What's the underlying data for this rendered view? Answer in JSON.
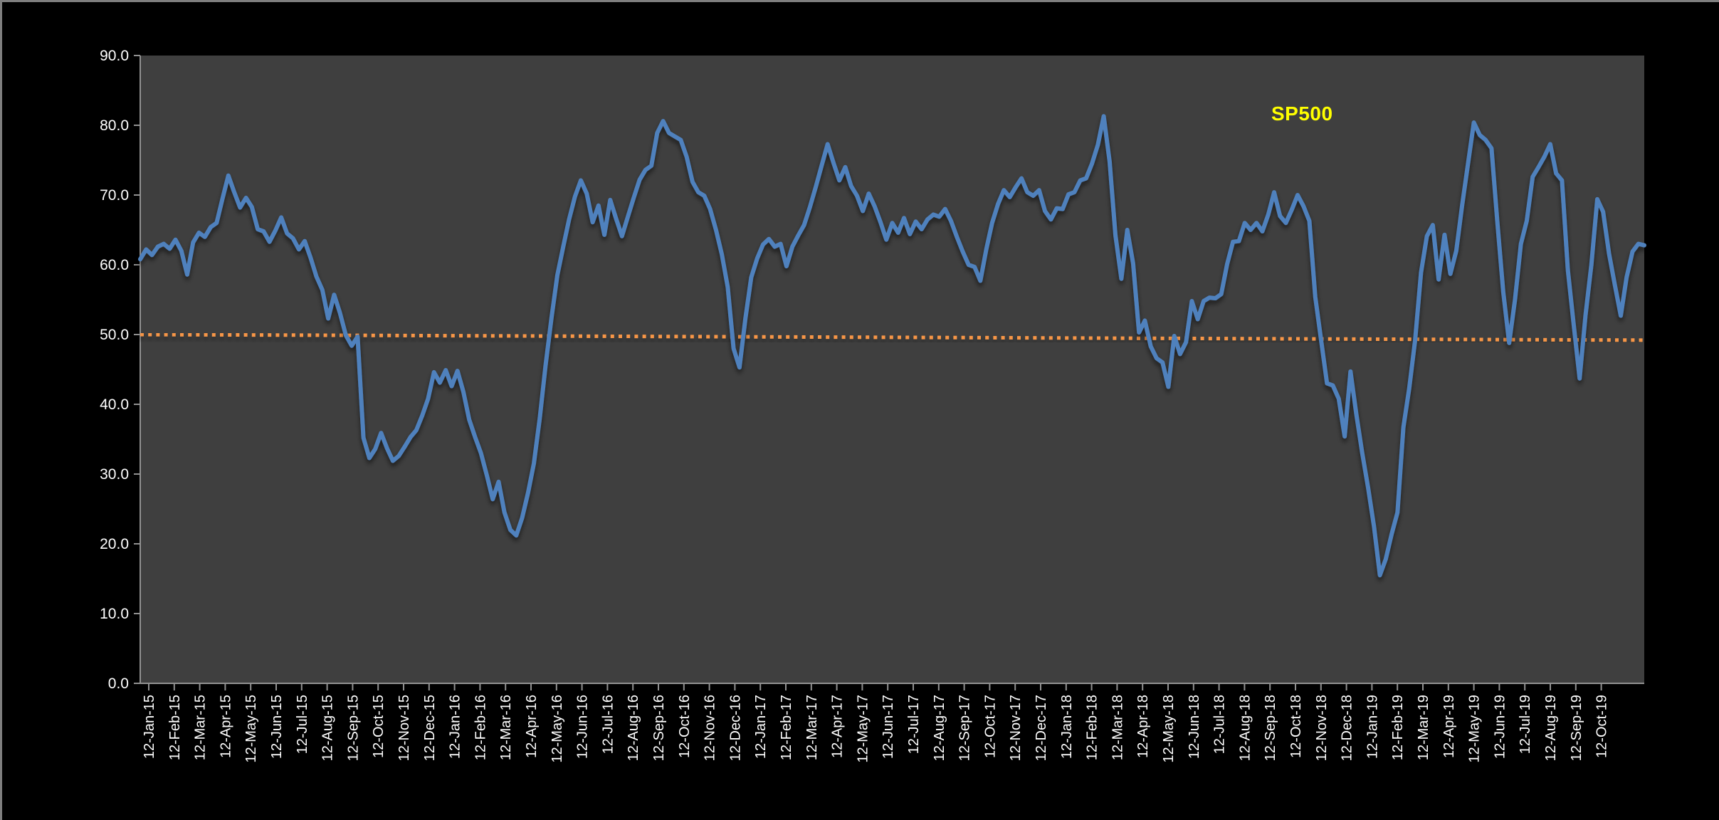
{
  "window": {
    "background_color": "#000000",
    "border_color": "#7f7f7f"
  },
  "chart_data": {
    "type": "line",
    "title": "",
    "xlabel": "",
    "ylabel": "",
    "series_label": "SP500",
    "series_label_color": "#FFFF00",
    "line_color": "#4F81BD",
    "trendline_color": "#F79646",
    "plot_background": "#3F3F3F",
    "axis_text_color": "#FFFFFF",
    "axis_line_color": "#919191",
    "grid": false,
    "legend_position": "inside-top-right",
    "ylim": [
      0,
      90
    ],
    "y_ticks": [
      "90.0",
      "80.0",
      "70.0",
      "60.0",
      "50.0",
      "40.0",
      "30.0",
      "20.0",
      "10.0",
      "0.0"
    ],
    "x_labels": [
      "12-Jan-15",
      "12-Feb-15",
      "12-Mar-15",
      "12-Apr-15",
      "12-May-15",
      "12-Jun-15",
      "12-Jul-15",
      "12-Aug-15",
      "12-Sep-15",
      "12-Oct-15",
      "12-Nov-15",
      "12-Dec-15",
      "12-Jan-16",
      "12-Feb-16",
      "12-Mar-16",
      "12-Apr-16",
      "12-May-16",
      "12-Jun-16",
      "12-Jul-16",
      "12-Aug-16",
      "12-Sep-16",
      "12-Oct-16",
      "12-Nov-16",
      "12-Dec-16",
      "12-Jan-17",
      "12-Feb-17",
      "12-Mar-17",
      "12-Apr-17",
      "12-May-17",
      "12-Jun-17",
      "12-Jul-17",
      "12-Aug-17",
      "12-Sep-17",
      "12-Oct-17",
      "12-Nov-17",
      "12-Dec-17",
      "12-Jan-18",
      "12-Feb-18",
      "12-Mar-18",
      "12-Apr-18",
      "12-May-18",
      "12-Jun-18",
      "12-Jul-18",
      "12-Aug-18",
      "12-Sep-18",
      "12-Oct-18",
      "12-Nov-18",
      "12-Dec-18",
      "12-Jan-19",
      "12-Feb-19",
      "12-Mar-19",
      "12-Apr-19",
      "12-May-19",
      "12-Jun-19",
      "12-Jul-19",
      "12-Aug-19",
      "12-Sep-19",
      "12-Oct-19"
    ],
    "series": [
      {
        "name": "SP500",
        "frequency": "weekly",
        "values": [
          60.8,
          62.2,
          61.4,
          62.6,
          63.0,
          62.3,
          63.6,
          62.0,
          58.6,
          63.2,
          64.6,
          64.0,
          65.4,
          66.0,
          69.5,
          72.8,
          70.4,
          68.2,
          69.6,
          68.3,
          65.1,
          64.8,
          63.3,
          64.9,
          66.8,
          64.5,
          63.8,
          62.2,
          63.4,
          61.0,
          58.3,
          56.4,
          52.3,
          55.7,
          53.1,
          49.9,
          48.4,
          49.7,
          35.2,
          32.3,
          33.6,
          35.9,
          33.7,
          31.9,
          32.6,
          33.9,
          35.3,
          36.3,
          38.4,
          40.8,
          44.6,
          43.1,
          44.9,
          42.6,
          44.8,
          41.8,
          37.8,
          35.3,
          33.0,
          29.8,
          26.4,
          28.9,
          24.5,
          22.0,
          21.2,
          23.7,
          27.3,
          31.5,
          38.0,
          45.6,
          52.4,
          58.5,
          62.6,
          66.5,
          69.8,
          72.1,
          70.2,
          66.1,
          68.5,
          64.3,
          69.3,
          66.6,
          64.1,
          66.9,
          69.6,
          72.2,
          73.6,
          74.2,
          78.9,
          80.6,
          78.9,
          78.4,
          77.9,
          75.5,
          71.9,
          70.4,
          69.9,
          68.0,
          65.0,
          61.5,
          56.8,
          48.0,
          45.3,
          52.3,
          58.2,
          60.9,
          62.9,
          63.7,
          62.6,
          63.0,
          59.8,
          62.6,
          64.2,
          65.7,
          68.3,
          71.2,
          74.3,
          77.3,
          74.6,
          72.1,
          74.0,
          71.3,
          69.9,
          67.7,
          70.2,
          68.4,
          66.1,
          63.6,
          66.0,
          64.6,
          66.7,
          64.4,
          66.2,
          65.1,
          66.5,
          67.2,
          66.9,
          68.0,
          66.3,
          64.0,
          61.9,
          60.0,
          59.7,
          57.7,
          62.2,
          66.0,
          68.7,
          70.7,
          69.7,
          71.1,
          72.4,
          70.4,
          69.9,
          70.7,
          67.7,
          66.5,
          68.1,
          68.0,
          70.1,
          70.4,
          72.1,
          72.4,
          74.5,
          77.2,
          81.3,
          74.8,
          64.2,
          58.0,
          65.0,
          60.2,
          50.3,
          52.0,
          48.3,
          46.6,
          46.0,
          42.5,
          49.8,
          47.2,
          48.9,
          54.8,
          52.2,
          54.8,
          55.3,
          55.2,
          55.8,
          60.1,
          63.3,
          63.4,
          66.0,
          65.0,
          66.0,
          64.8,
          67.2,
          70.4,
          67.0,
          66.0,
          67.9,
          70.0,
          68.4,
          66.3,
          55.4,
          49.2,
          43.0,
          42.7,
          40.8,
          35.4,
          44.7,
          38.5,
          33.0,
          28.0,
          22.5,
          15.5,
          17.8,
          21.4,
          24.5,
          36.7,
          42.3,
          49.2,
          58.9,
          64.1,
          65.7,
          57.9,
          64.3,
          58.7,
          62.0,
          68.5,
          74.5,
          80.4,
          78.6,
          77.9,
          76.7,
          66.0,
          56.1,
          48.8,
          55.0,
          63.0,
          66.3,
          72.6,
          74.0,
          75.5,
          77.3,
          73.1,
          72.1,
          59.2,
          51.3,
          43.7,
          52.8,
          60.0,
          69.4,
          67.6,
          61.6,
          57.1,
          52.7,
          58.2,
          61.9,
          63.0,
          62.8
        ]
      }
    ],
    "trendline": {
      "style": "dotted",
      "start_value": 50.0,
      "end_value": 49.2
    }
  }
}
